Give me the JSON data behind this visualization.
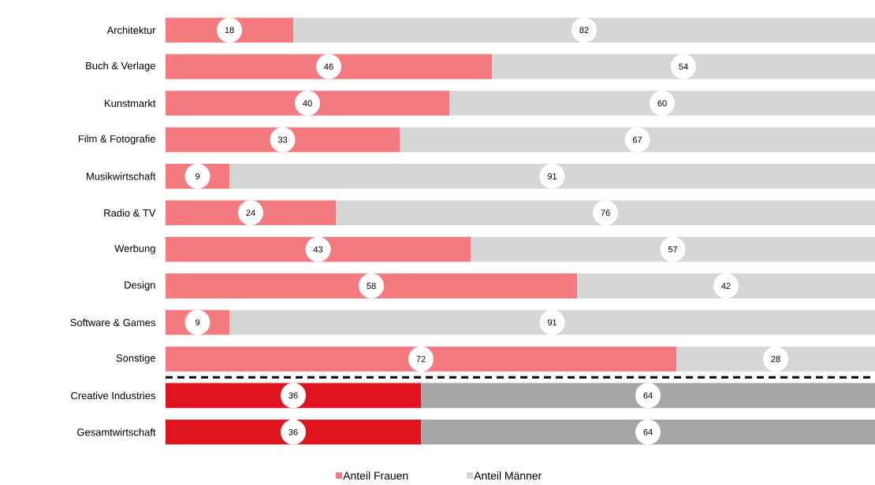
{
  "chart_data": {
    "type": "bar",
    "orientation": "horizontal",
    "stacked": true,
    "categories": [
      "Architektur",
      "Buch & Verlage",
      "Kunstmarkt",
      "Film & Fotografie",
      "Musikwirtschaft",
      "Radio & TV",
      "Werbung",
      "Design",
      "Software & Games",
      "Sonstige",
      "Creative Industries",
      "Gesamtwirtschaft"
    ],
    "series": [
      {
        "name": "Anteil Frauen",
        "colors": [
          "#f47a80",
          "#f47a80",
          "#f47a80",
          "#f47a80",
          "#f47a80",
          "#f47a80",
          "#f47a80",
          "#f47a80",
          "#f47a80",
          "#f47a80",
          "#e0141e",
          "#e0141e"
        ],
        "values": [
          18,
          46,
          40,
          33,
          9,
          24,
          43,
          58,
          9,
          72,
          36,
          36
        ]
      },
      {
        "name": "Anteil Männer",
        "colors": [
          "#d6d6d6",
          "#d6d6d6",
          "#d6d6d6",
          "#d6d6d6",
          "#d6d6d6",
          "#d6d6d6",
          "#d6d6d6",
          "#d6d6d6",
          "#d6d6d6",
          "#d6d6d6",
          "#a6a6a6",
          "#a6a6a6"
        ],
        "values": [
          82,
          54,
          60,
          67,
          91,
          76,
          57,
          42,
          91,
          28,
          64,
          64
        ]
      }
    ],
    "xlim": [
      0,
      100
    ],
    "data_labels": true,
    "tick_labels": "y",
    "legend": "bottom"
  }
}
